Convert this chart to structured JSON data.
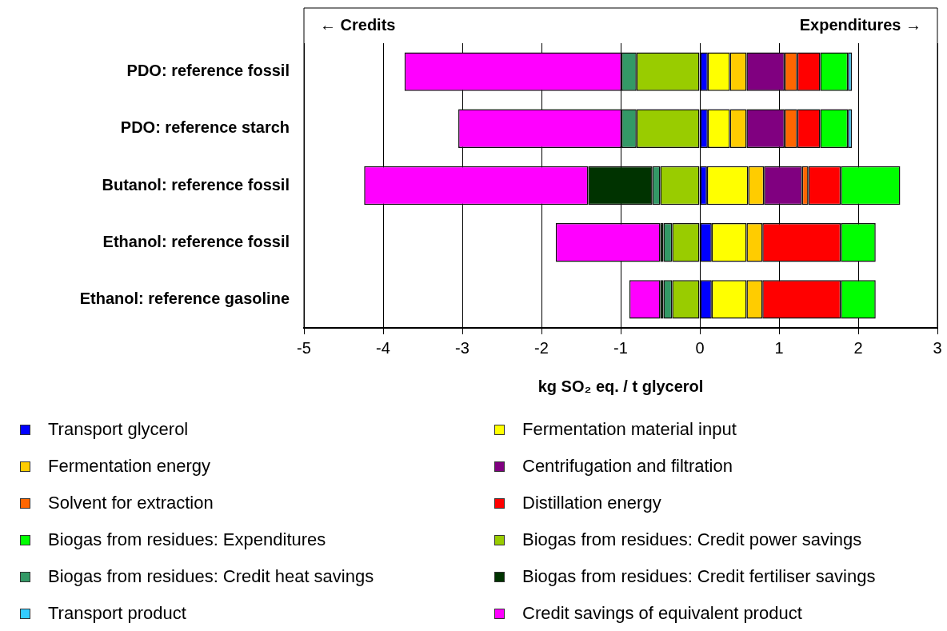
{
  "chart_data": {
    "type": "bar",
    "orientation": "horizontal",
    "stacked": true,
    "categories": [
      "PDO: reference fossil",
      "PDO: reference starch",
      "Butanol: reference fossil",
      "Ethanol: reference fossil",
      "Ethanol: reference gasoline"
    ],
    "xlabel": "kg SO₂ eq. / t glycerol",
    "xlim": [
      -5,
      3
    ],
    "xticks": [
      -5,
      -4,
      -3,
      -2,
      -1,
      0,
      1,
      2,
      3
    ],
    "grid": "x",
    "legend": "bottom",
    "annotations": [
      "← Credits",
      "Expenditures →"
    ],
    "series": [
      {
        "name": "Transport glycerol",
        "color": "#0000ff",
        "values": [
          0.1,
          0.1,
          0.09,
          0.15,
          0.15
        ]
      },
      {
        "name": "Fermentation material input",
        "color": "#ffff00",
        "values": [
          0.28,
          0.28,
          0.52,
          0.44,
          0.44
        ]
      },
      {
        "name": "Fermentation energy",
        "color": "#ffcc00",
        "values": [
          0.21,
          0.21,
          0.2,
          0.2,
          0.2
        ]
      },
      {
        "name": "Centrifugation and filtration",
        "color": "#800080",
        "values": [
          0.48,
          0.48,
          0.48,
          null,
          null
        ]
      },
      {
        "name": "Solvent for extraction",
        "color": "#ff6600",
        "values": [
          0.16,
          0.16,
          0.08,
          null,
          null
        ]
      },
      {
        "name": "Distillation energy",
        "color": "#ff0000",
        "values": [
          0.29,
          0.29,
          0.41,
          0.99,
          0.99
        ]
      },
      {
        "name": "Biogas from residues: Expenditures",
        "color": "#00ff00",
        "values": [
          0.35,
          0.35,
          0.75,
          0.44,
          0.44
        ]
      },
      {
        "name": "Biogas from residues: Credit power savings",
        "color": "#99cc00",
        "values": [
          -0.8,
          -0.8,
          -0.5,
          -0.35,
          -0.35
        ]
      },
      {
        "name": "Biogas from residues: Credit heat savings",
        "color": "#339966",
        "values": [
          -0.19,
          -0.19,
          -0.1,
          -0.11,
          -0.11
        ]
      },
      {
        "name": "Biogas from residues: Credit fertiliser savings",
        "color": "#003300",
        "values": [
          null,
          null,
          -0.81,
          -0.04,
          -0.04
        ]
      },
      {
        "name": "Transport product",
        "color": "#33ccff",
        "values": [
          0.05,
          0.05,
          null,
          null,
          null
        ]
      },
      {
        "name": "Credit savings of equivalent product",
        "color": "#ff00ff",
        "values": [
          -2.74,
          -2.06,
          -2.83,
          -1.32,
          -0.39
        ]
      }
    ]
  }
}
